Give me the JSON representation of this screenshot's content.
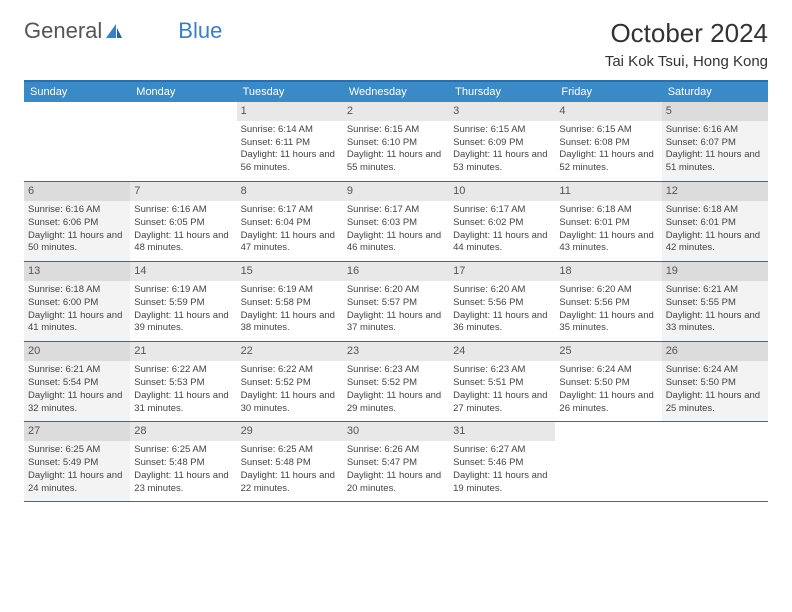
{
  "logo": {
    "text1": "General",
    "text2": "Blue"
  },
  "title": "October 2024",
  "location": "Tai Kok Tsui, Hong Kong",
  "colors": {
    "header_bg": "#3a8ac8",
    "border": "#2f6fa8",
    "daynum_bg": "#e8e8e8",
    "shaded_bg": "#f3f3f3"
  },
  "weekdays": [
    "Sunday",
    "Monday",
    "Tuesday",
    "Wednesday",
    "Thursday",
    "Friday",
    "Saturday"
  ],
  "weeks": [
    [
      {
        "empty": true
      },
      {
        "empty": true
      },
      {
        "num": "1",
        "sunrise": "Sunrise: 6:14 AM",
        "sunset": "Sunset: 6:11 PM",
        "daylight": "Daylight: 11 hours and 56 minutes."
      },
      {
        "num": "2",
        "sunrise": "Sunrise: 6:15 AM",
        "sunset": "Sunset: 6:10 PM",
        "daylight": "Daylight: 11 hours and 55 minutes."
      },
      {
        "num": "3",
        "sunrise": "Sunrise: 6:15 AM",
        "sunset": "Sunset: 6:09 PM",
        "daylight": "Daylight: 11 hours and 53 minutes."
      },
      {
        "num": "4",
        "sunrise": "Sunrise: 6:15 AM",
        "sunset": "Sunset: 6:08 PM",
        "daylight": "Daylight: 11 hours and 52 minutes."
      },
      {
        "num": "5",
        "sunrise": "Sunrise: 6:16 AM",
        "sunset": "Sunset: 6:07 PM",
        "daylight": "Daylight: 11 hours and 51 minutes.",
        "shaded": true
      }
    ],
    [
      {
        "num": "6",
        "sunrise": "Sunrise: 6:16 AM",
        "sunset": "Sunset: 6:06 PM",
        "daylight": "Daylight: 11 hours and 50 minutes.",
        "shaded": true
      },
      {
        "num": "7",
        "sunrise": "Sunrise: 6:16 AM",
        "sunset": "Sunset: 6:05 PM",
        "daylight": "Daylight: 11 hours and 48 minutes."
      },
      {
        "num": "8",
        "sunrise": "Sunrise: 6:17 AM",
        "sunset": "Sunset: 6:04 PM",
        "daylight": "Daylight: 11 hours and 47 minutes."
      },
      {
        "num": "9",
        "sunrise": "Sunrise: 6:17 AM",
        "sunset": "Sunset: 6:03 PM",
        "daylight": "Daylight: 11 hours and 46 minutes."
      },
      {
        "num": "10",
        "sunrise": "Sunrise: 6:17 AM",
        "sunset": "Sunset: 6:02 PM",
        "daylight": "Daylight: 11 hours and 44 minutes."
      },
      {
        "num": "11",
        "sunrise": "Sunrise: 6:18 AM",
        "sunset": "Sunset: 6:01 PM",
        "daylight": "Daylight: 11 hours and 43 minutes."
      },
      {
        "num": "12",
        "sunrise": "Sunrise: 6:18 AM",
        "sunset": "Sunset: 6:01 PM",
        "daylight": "Daylight: 11 hours and 42 minutes.",
        "shaded": true
      }
    ],
    [
      {
        "num": "13",
        "sunrise": "Sunrise: 6:18 AM",
        "sunset": "Sunset: 6:00 PM",
        "daylight": "Daylight: 11 hours and 41 minutes.",
        "shaded": true
      },
      {
        "num": "14",
        "sunrise": "Sunrise: 6:19 AM",
        "sunset": "Sunset: 5:59 PM",
        "daylight": "Daylight: 11 hours and 39 minutes."
      },
      {
        "num": "15",
        "sunrise": "Sunrise: 6:19 AM",
        "sunset": "Sunset: 5:58 PM",
        "daylight": "Daylight: 11 hours and 38 minutes."
      },
      {
        "num": "16",
        "sunrise": "Sunrise: 6:20 AM",
        "sunset": "Sunset: 5:57 PM",
        "daylight": "Daylight: 11 hours and 37 minutes."
      },
      {
        "num": "17",
        "sunrise": "Sunrise: 6:20 AM",
        "sunset": "Sunset: 5:56 PM",
        "daylight": "Daylight: 11 hours and 36 minutes."
      },
      {
        "num": "18",
        "sunrise": "Sunrise: 6:20 AM",
        "sunset": "Sunset: 5:56 PM",
        "daylight": "Daylight: 11 hours and 35 minutes."
      },
      {
        "num": "19",
        "sunrise": "Sunrise: 6:21 AM",
        "sunset": "Sunset: 5:55 PM",
        "daylight": "Daylight: 11 hours and 33 minutes.",
        "shaded": true
      }
    ],
    [
      {
        "num": "20",
        "sunrise": "Sunrise: 6:21 AM",
        "sunset": "Sunset: 5:54 PM",
        "daylight": "Daylight: 11 hours and 32 minutes.",
        "shaded": true
      },
      {
        "num": "21",
        "sunrise": "Sunrise: 6:22 AM",
        "sunset": "Sunset: 5:53 PM",
        "daylight": "Daylight: 11 hours and 31 minutes."
      },
      {
        "num": "22",
        "sunrise": "Sunrise: 6:22 AM",
        "sunset": "Sunset: 5:52 PM",
        "daylight": "Daylight: 11 hours and 30 minutes."
      },
      {
        "num": "23",
        "sunrise": "Sunrise: 6:23 AM",
        "sunset": "Sunset: 5:52 PM",
        "daylight": "Daylight: 11 hours and 29 minutes."
      },
      {
        "num": "24",
        "sunrise": "Sunrise: 6:23 AM",
        "sunset": "Sunset: 5:51 PM",
        "daylight": "Daylight: 11 hours and 27 minutes."
      },
      {
        "num": "25",
        "sunrise": "Sunrise: 6:24 AM",
        "sunset": "Sunset: 5:50 PM",
        "daylight": "Daylight: 11 hours and 26 minutes."
      },
      {
        "num": "26",
        "sunrise": "Sunrise: 6:24 AM",
        "sunset": "Sunset: 5:50 PM",
        "daylight": "Daylight: 11 hours and 25 minutes.",
        "shaded": true
      }
    ],
    [
      {
        "num": "27",
        "sunrise": "Sunrise: 6:25 AM",
        "sunset": "Sunset: 5:49 PM",
        "daylight": "Daylight: 11 hours and 24 minutes.",
        "shaded": true
      },
      {
        "num": "28",
        "sunrise": "Sunrise: 6:25 AM",
        "sunset": "Sunset: 5:48 PM",
        "daylight": "Daylight: 11 hours and 23 minutes."
      },
      {
        "num": "29",
        "sunrise": "Sunrise: 6:25 AM",
        "sunset": "Sunset: 5:48 PM",
        "daylight": "Daylight: 11 hours and 22 minutes."
      },
      {
        "num": "30",
        "sunrise": "Sunrise: 6:26 AM",
        "sunset": "Sunset: 5:47 PM",
        "daylight": "Daylight: 11 hours and 20 minutes."
      },
      {
        "num": "31",
        "sunrise": "Sunrise: 6:27 AM",
        "sunset": "Sunset: 5:46 PM",
        "daylight": "Daylight: 11 hours and 19 minutes."
      },
      {
        "empty": true
      },
      {
        "empty": true
      }
    ]
  ]
}
